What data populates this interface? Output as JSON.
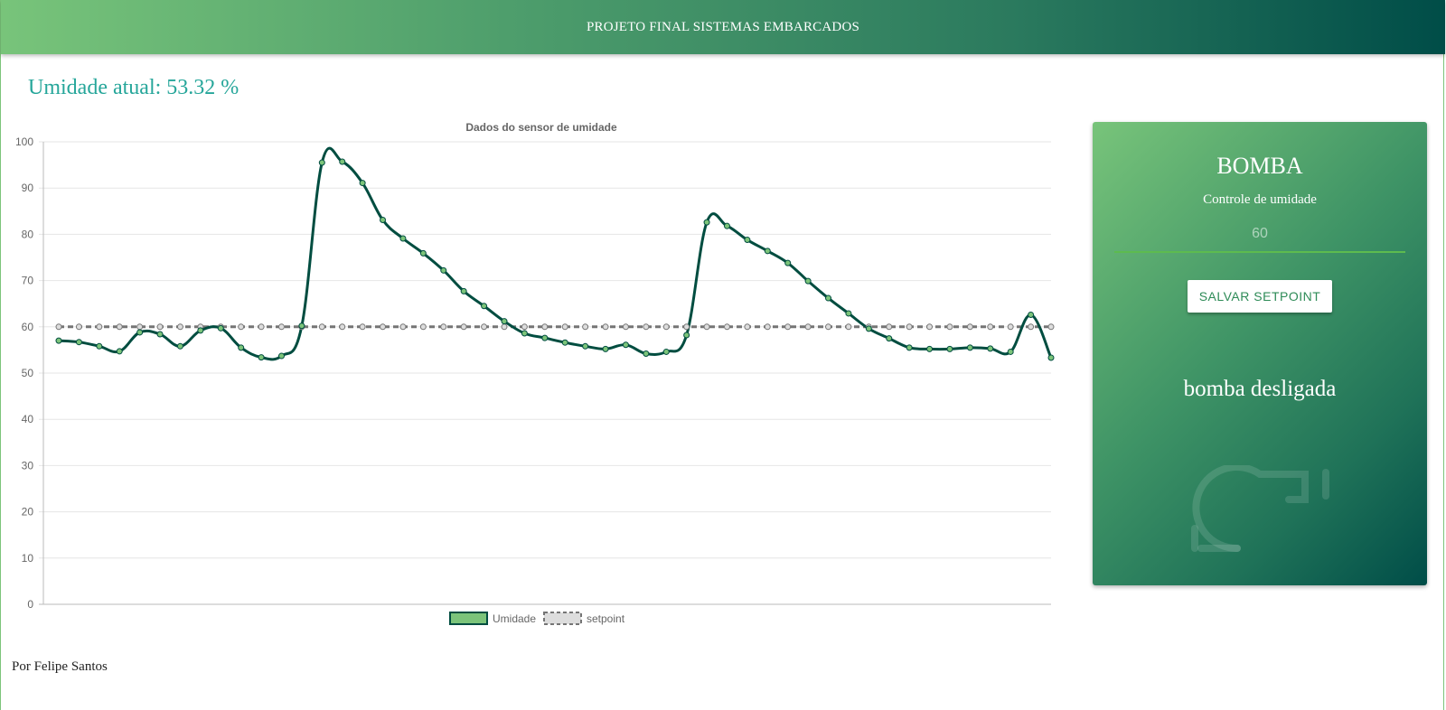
{
  "header": {
    "title": "PROJETO FINAL SISTEMAS EMBARCADOS"
  },
  "humidity": {
    "label": "Umidade atual: 53.32 %"
  },
  "pump_card": {
    "title": "BOMBA",
    "subtitle": "Controle de umidade",
    "setpoint_value": "60",
    "save_label": "SALVAR SETPOINT",
    "status": "bomba desligada",
    "icon": "pump-icon"
  },
  "footer": {
    "text": "Por Felipe Santos"
  },
  "colors": {
    "umidade_line": "#004d40",
    "umidade_point": "#7cc47a",
    "setpoint_line": "#757575",
    "accent": "#26a69a"
  },
  "chart_data": {
    "type": "line",
    "title": "Dados do sensor de umidade",
    "ylim": [
      0,
      100
    ],
    "yticks": [
      "0",
      "10",
      "20",
      "30",
      "40",
      "50",
      "60",
      "70",
      "80",
      "90",
      "100"
    ],
    "grid": true,
    "legend_position": "bottom",
    "series": [
      {
        "name": "Umidade",
        "values": [
          57,
          56.7,
          55.8,
          54.7,
          58.8,
          58.4,
          55.8,
          59.2,
          59.7,
          55.5,
          53.4,
          53.7,
          60.2,
          95.5,
          95.7,
          91.1,
          83.1,
          79.1,
          75.9,
          72.2,
          67.7,
          64.5,
          61.2,
          58.6,
          57.6,
          56.6,
          55.8,
          55.2,
          56.1,
          54.2,
          54.6,
          58.2,
          82.6,
          81.8,
          78.8,
          76.4,
          73.8,
          69.9,
          66.2,
          62.9,
          59.6,
          57.5,
          55.5,
          55.2,
          55.2,
          55.5,
          55.3,
          54.6,
          62.6,
          53.32
        ]
      },
      {
        "name": "setpoint",
        "values": [
          60,
          60,
          60,
          60,
          60,
          60,
          60,
          60,
          60,
          60,
          60,
          60,
          60,
          60,
          60,
          60,
          60,
          60,
          60,
          60,
          60,
          60,
          60,
          60,
          60,
          60,
          60,
          60,
          60,
          60,
          60,
          60,
          60,
          60,
          60,
          60,
          60,
          60,
          60,
          60,
          60,
          60,
          60,
          60,
          60,
          60,
          60,
          60,
          60,
          60
        ]
      }
    ]
  }
}
